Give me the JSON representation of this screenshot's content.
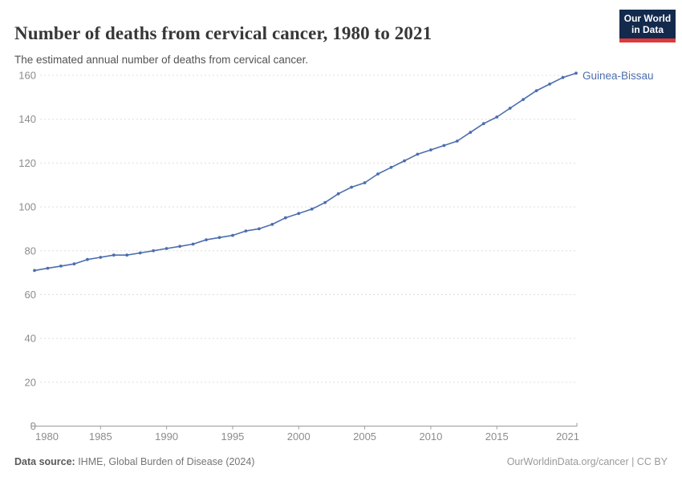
{
  "header": {
    "title": "Number of deaths from cervical cancer, 1980 to 2021",
    "subtitle": "The estimated annual number of deaths from cervical cancer.",
    "logo_line1": "Our World",
    "logo_line2": "in Data"
  },
  "chart_data": {
    "type": "line",
    "title": "Number of deaths from cervical cancer, 1980 to 2021",
    "xlabel": "",
    "ylabel": "",
    "xlim": [
      1980,
      2021
    ],
    "ylim": [
      0,
      160
    ],
    "x_ticks": [
      1980,
      1985,
      1990,
      1995,
      2000,
      2005,
      2010,
      2015,
      2021
    ],
    "y_ticks": [
      0,
      20,
      40,
      60,
      80,
      100,
      120,
      140,
      160
    ],
    "grid": "horizontal-dashed",
    "legend_position": "end-of-line",
    "series": [
      {
        "name": "Guinea-Bissau",
        "color": "#4C6EAE",
        "x": [
          1980,
          1981,
          1982,
          1983,
          1984,
          1985,
          1986,
          1987,
          1988,
          1989,
          1990,
          1991,
          1992,
          1993,
          1994,
          1995,
          1996,
          1997,
          1998,
          1999,
          2000,
          2001,
          2002,
          2003,
          2004,
          2005,
          2006,
          2007,
          2008,
          2009,
          2010,
          2011,
          2012,
          2013,
          2014,
          2015,
          2016,
          2017,
          2018,
          2019,
          2020,
          2021
        ],
        "values": [
          71,
          72,
          73,
          74,
          76,
          77,
          78,
          78,
          79,
          80,
          81,
          82,
          83,
          85,
          86,
          87,
          89,
          90,
          92,
          95,
          97,
          99,
          102,
          106,
          109,
          111,
          115,
          118,
          121,
          124,
          126,
          128,
          130,
          134,
          138,
          141,
          145,
          149,
          153,
          156,
          159,
          161
        ]
      }
    ]
  },
  "footer": {
    "source_label": "Data source:",
    "source_text": " IHME, Global Burden of Disease (2024)",
    "credit": "OurWorldinData.org/cancer | CC BY"
  },
  "colors": {
    "line": "#4C6EAE",
    "grid": "#dddddd",
    "axis": "#9b9b9b",
    "tick_label": "#8c8c8c",
    "title": "#373737",
    "subtitle": "#535353",
    "footer": "#757575",
    "credit": "#9a9a9a",
    "logo_bg": "#132A4D",
    "logo_red": "#E0393C"
  }
}
